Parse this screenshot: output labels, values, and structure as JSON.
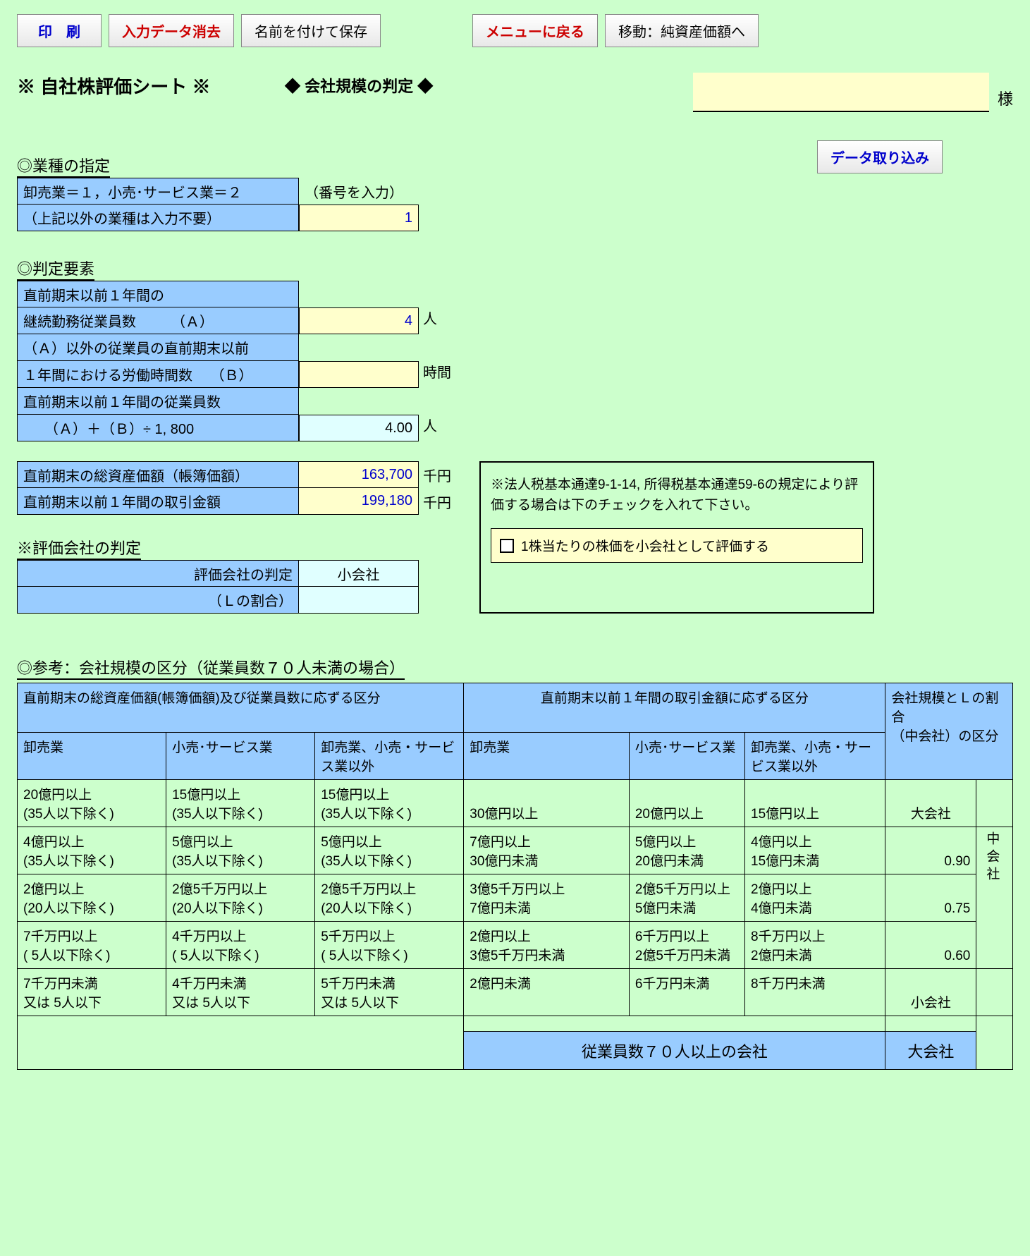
{
  "toolbar": {
    "print": "印　刷",
    "clear": "入力データ消去",
    "saveas": "名前を付けて保存",
    "menu": "メニューに戻る",
    "jump": "移動：純資産価額へ"
  },
  "title": "※ 自社株評価シート ※",
  "subtitle": "◆  会社規模の判定  ◆",
  "sama": "様",
  "importBtn": "データ取り込み",
  "sec1": {
    "header": "◎業種の指定",
    "row1": "卸売業＝１，小売･サービス業＝２",
    "row2": "（上記以外の業種は入力不要）",
    "hint": "（番号を入力）",
    "value": "1"
  },
  "sec2": {
    "header": "◎判定要素",
    "a1": "直前期末以前１年間の",
    "a2": "継続勤務従業員数　　　（Ａ）",
    "avalue": "4",
    "aunit": "人",
    "b1": "（Ａ）以外の従業員の直前期末以前",
    "b2": "１年間における労働時間数　  （Ｂ）",
    "bvalue": "",
    "bunit": "時間",
    "c1": "直前期末以前１年間の従業員数",
    "c2": "　　（Ａ）＋（Ｂ）÷ 1, 800",
    "cvalue": "4.00",
    "cunit": "人",
    "d": "直前期末の総資産価額（帳簿価額）",
    "dvalue": "163,700",
    "dunit": "千円",
    "e": "直前期末以前１年間の取引金額",
    "evalue": "199,180",
    "eunit": "千円"
  },
  "sec3": {
    "header": "※評価会社の判定",
    "r1": "評価会社の判定",
    "r1v": "小会社",
    "r2": "（Ｌの割合）",
    "r2v": ""
  },
  "panel": {
    "text": "※法人税基本通達9-1-14, 所得税基本通達59-6の規定により評価する場合は下のチェックを入れて下さい。",
    "check": "1株当たりの株価を小会社として評価する"
  },
  "ref": {
    "header": "◎参考：会社規模の区分（従業員数７０人未満の場合）",
    "h1": "直前期末の総資産価額(帳簿価額)及び従業員数に応ずる区分",
    "h2": "直前期末以前１年間の取引金額に応ずる区分",
    "h3a": "会社規模とＬの割合",
    "h3b": "（中会社）の区分",
    "cats": [
      "卸売業",
      "小売･サービス業",
      "卸売業、小売・サービス業以外",
      "卸売業",
      "小売･サービス業",
      "卸売業、小売・サービス業以外"
    ],
    "rows": [
      [
        [
          "20億円以上",
          "(35人以下除く)"
        ],
        [
          "15億円以上",
          "(35人以下除く)"
        ],
        [
          "15億円以上",
          "(35人以下除く)"
        ],
        [
          "30億円以上",
          ""
        ],
        [
          "20億円以上",
          ""
        ],
        [
          "15億円以上",
          ""
        ],
        "大会社"
      ],
      [
        [
          " 4億円以上",
          "(35人以下除く)"
        ],
        [
          " 5億円以上",
          "(35人以下除く)"
        ],
        [
          " 5億円以上",
          "(35人以下除く)"
        ],
        [
          " 7億円以上",
          "30億円未満"
        ],
        [
          " 5億円以上",
          "20億円未満"
        ],
        [
          " 4億円以上",
          "15億円未満"
        ],
        "0.90"
      ],
      [
        [
          " 2億円以上",
          "(20人以下除く)"
        ],
        [
          " 2億5千万円以上",
          "(20人以下除く)"
        ],
        [
          " 2億5千万円以上",
          "(20人以下除く)"
        ],
        [
          " 3億5千万円以上",
          "7億円未満"
        ],
        [
          " 2億5千万円以上",
          "5億円未満"
        ],
        [
          " 2億円以上",
          "4億円未満"
        ],
        "0.75"
      ],
      [
        [
          " 7千万円以上",
          "( 5人以下除く)"
        ],
        [
          " 4千万円以上",
          "( 5人以下除く)"
        ],
        [
          " 5千万円以上",
          "( 5人以下除く)"
        ],
        [
          " 2億円以上",
          "3億5千万円未満"
        ],
        [
          " 6千万円以上",
          "2億5千万円未満"
        ],
        [
          " 8千万円以上",
          "2億円未満"
        ],
        "0.60"
      ],
      [
        [
          " 7千万円未満",
          "又は 5人以下"
        ],
        [
          " 4千万円未満",
          "又は  5人以下"
        ],
        [
          " 5千万円未満",
          "又は  5人以下"
        ],
        [
          " 2億円未満",
          ""
        ],
        [
          " 6千万円未満",
          ""
        ],
        [
          " 8千万円未満",
          ""
        ],
        "小会社"
      ]
    ],
    "vside": "中会社",
    "foot1": "従業員数７０人以上の会社",
    "foot2": "大会社"
  }
}
